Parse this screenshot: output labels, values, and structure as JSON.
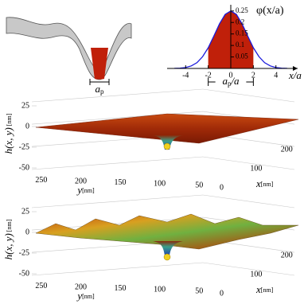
{
  "schematic": {
    "label": "a",
    "subscript": "p"
  },
  "chart_data": [
    {
      "type": "line",
      "title": "φ(x/a)",
      "x_label": "x/a",
      "x": [
        -5,
        -4.5,
        -4,
        -3.5,
        -3,
        -2.5,
        -2,
        -1.5,
        -1,
        -0.5,
        0,
        0.5,
        1,
        1.5,
        2,
        2.5,
        3,
        3.5,
        4,
        4.5,
        5
      ],
      "values": [
        0.0004,
        0.0014,
        0.004,
        0.011,
        0.025,
        0.051,
        0.09,
        0.141,
        0.194,
        0.235,
        0.25,
        0.235,
        0.194,
        0.141,
        0.09,
        0.051,
        0.025,
        0.011,
        0.004,
        0.0014,
        0.0004
      ],
      "xlim": [
        -5.5,
        5.5
      ],
      "ylim": [
        0,
        0.27
      ],
      "xticks": [
        -4,
        -2,
        0,
        2,
        4
      ],
      "yticks": [
        0.05,
        0.1,
        0.15,
        0.2,
        0.25
      ],
      "color": "#1a1adc",
      "fill_color": "#c0200a",
      "shaded_xlim": [
        -2,
        2
      ],
      "annotation": {
        "main": "a",
        "sub": "p",
        "tail": "/a"
      }
    },
    {
      "type": "surface3d",
      "z_label": "h(x, y)",
      "z_unit": "[nm]",
      "x_label": "x",
      "x_unit": "[nm]",
      "y_label": "y",
      "y_unit": "[nm]",
      "zlim": [
        -50,
        25
      ],
      "zticks": [
        25,
        0,
        -25,
        -50
      ],
      "ylim": [
        270,
        20
      ],
      "yticks": [
        250,
        200,
        150,
        100,
        50
      ],
      "xlim": [
        0,
        250
      ],
      "xticks": [
        0,
        100,
        200
      ],
      "rough": false
    },
    {
      "type": "surface3d",
      "z_label": "h(x, y)",
      "z_unit": "[nm]",
      "x_label": "x",
      "x_unit": "[nm]",
      "y_label": "y",
      "y_unit": "[nm]",
      "zlim": [
        -50,
        25
      ],
      "zticks": [
        25,
        0,
        -25,
        -50
      ],
      "ylim": [
        270,
        20
      ],
      "yticks": [
        250,
        200,
        150,
        100,
        50
      ],
      "xlim": [
        0,
        250
      ],
      "xticks": [
        0,
        100,
        200
      ],
      "rough": true
    }
  ]
}
